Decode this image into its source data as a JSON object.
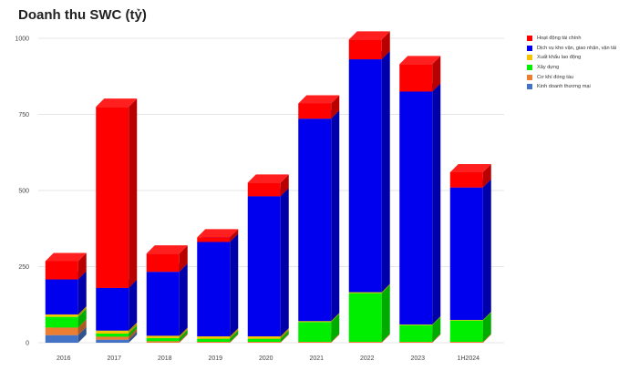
{
  "title": "Doanh thu SWC (tỷ)",
  "chart_data": {
    "type": "bar",
    "stacked": true,
    "style": "3d",
    "title": "Doanh thu SWC (tỷ)",
    "xlabel": "",
    "ylabel": "",
    "ylim": [
      0,
      1000
    ],
    "yticks": [
      0,
      250,
      500,
      750,
      1000
    ],
    "grid": true,
    "legend_position": "right",
    "categories": [
      "2016",
      "2017",
      "2018",
      "2019",
      "2020",
      "2021",
      "2022",
      "2023",
      "1H2024"
    ],
    "series": [
      {
        "name": "Kinh doanh thương mại",
        "color": "#4472c4",
        "values": [
          25,
          10,
          0,
          0,
          0,
          0,
          0,
          0,
          0
        ]
      },
      {
        "name": "Cơ khí đóng tàu",
        "color": "#ed7d31",
        "values": [
          25,
          10,
          5,
          3,
          3,
          3,
          3,
          3,
          3
        ]
      },
      {
        "name": "Xây dựng",
        "color": "#00ee00",
        "values": [
          35,
          10,
          10,
          10,
          10,
          65,
          160,
          55,
          70
        ]
      },
      {
        "name": "Xuất khẩu lao động",
        "color": "#f5c400",
        "values": [
          8,
          10,
          8,
          8,
          8,
          3,
          3,
          2,
          2
        ]
      },
      {
        "name": "Dịch vụ kho vận, giao nhận, vận tải",
        "color": "#0000ee",
        "values": [
          115,
          140,
          210,
          310,
          460,
          665,
          765,
          765,
          435
        ]
      },
      {
        "name": "Hoạt động tài chính",
        "color": "#ff0000",
        "values": [
          60,
          595,
          60,
          15,
          45,
          50,
          65,
          90,
          50
        ]
      }
    ]
  }
}
